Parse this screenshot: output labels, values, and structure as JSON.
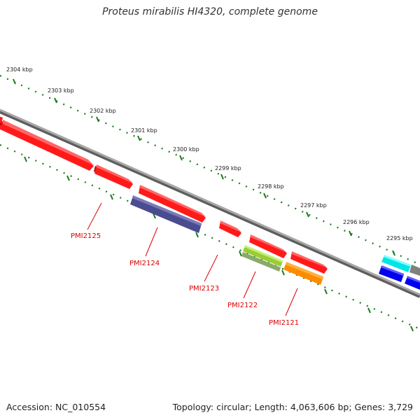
{
  "title": "Proteus mirabilis HI4320, complete genome",
  "accession": "Accession: NC_010554",
  "summary": "Topology: circular; Length: 4,063,606 bp; Genes: 3,729",
  "ruler_labels": [
    "2304 kbp",
    "2303 kbp",
    "2302 kbp",
    "2301 kbp",
    "2300 kbp",
    "2299 kbp",
    "2298 kbp",
    "2297 kbp",
    "2296 kbp",
    "2295 kbp"
  ],
  "gene_labels": [
    "PMI2125",
    "PMI2124",
    "PMI2123",
    "PMI2122",
    "PMI2121"
  ],
  "colors": {
    "backbone": "#888888",
    "ruler": "#1a7a1a",
    "red_gene": "#ff0000",
    "purple_gene": "#4b4b8f",
    "green_gene": "#9acd32",
    "orange_gene": "#ff8c00",
    "cyan_gene": "#00e5e5",
    "blue_gene": "#0000ee",
    "grey_gene": "#808080",
    "label": "#dd0000"
  }
}
